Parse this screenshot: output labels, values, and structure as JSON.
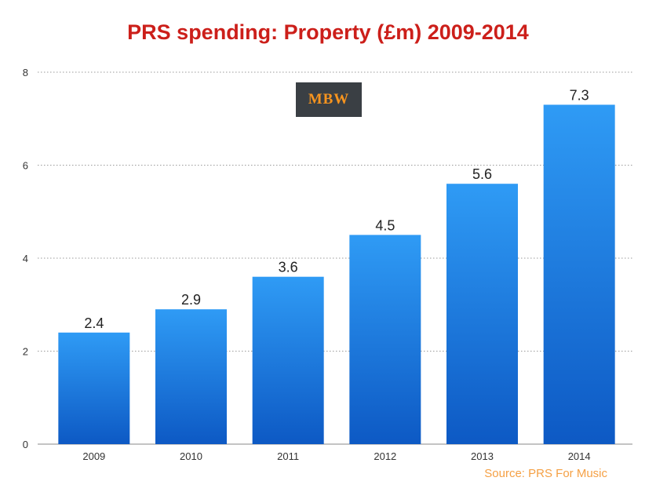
{
  "colors": {
    "title": "#cc1f1a",
    "bar_top": "#2f9bf5",
    "bar_bottom": "#0d59c4",
    "source": "#f5a044",
    "logo_bg": "#3a3f44",
    "logo_text": "#f7941e"
  },
  "logo": {
    "text": "MBW"
  },
  "source": "Source: PRS For Music",
  "chart_data": {
    "type": "bar",
    "title": "PRS spending: Property (£m) 2009-2014",
    "categories": [
      "2009",
      "2010",
      "2011",
      "2012",
      "2013",
      "2014"
    ],
    "values": [
      2.4,
      2.9,
      3.6,
      4.5,
      5.6,
      7.3
    ],
    "value_labels": [
      "2.4",
      "2.9",
      "3.6",
      "4.5",
      "5.6",
      "7.3"
    ],
    "y_ticks": [
      0,
      2,
      4,
      6,
      8
    ],
    "ylim": [
      0,
      8
    ],
    "grid": true,
    "xlabel": "",
    "ylabel": "",
    "legend": "none"
  }
}
